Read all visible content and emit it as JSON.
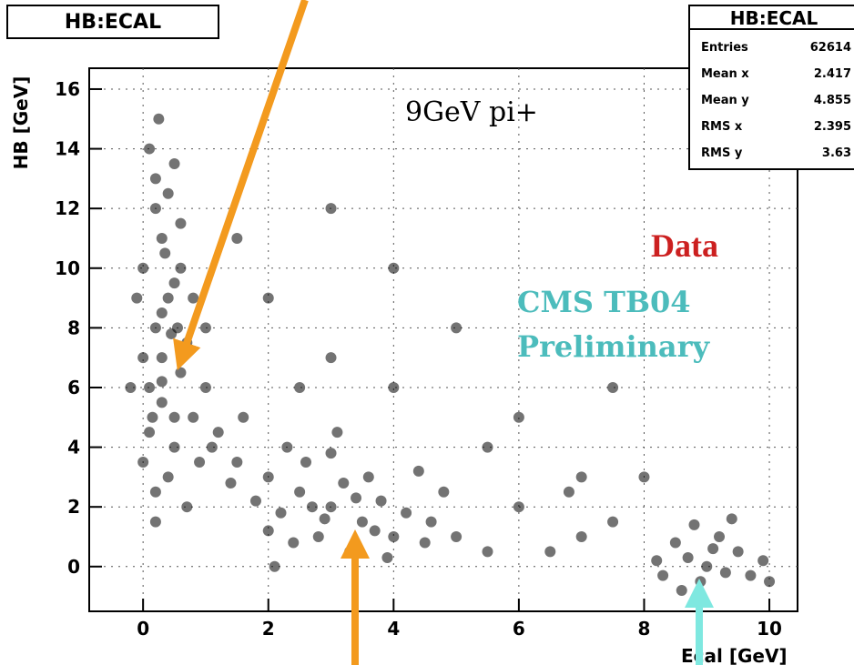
{
  "chart_data": {
    "type": "scatter",
    "title": "HB:ECAL",
    "xlabel": "Ecal [GeV]",
    "ylabel": "HB [GeV]",
    "xlim": [
      -0.86,
      10.45
    ],
    "ylim": [
      -1.5,
      16.7
    ],
    "xticks": [
      0,
      2,
      4,
      6,
      8,
      10
    ],
    "yticks": [
      0,
      2,
      4,
      6,
      8,
      10,
      12,
      14,
      16
    ],
    "grid": true,
    "color": "#000000",
    "x": [
      0.1,
      0.3,
      0.5,
      0.2,
      0.4,
      0.6,
      0.0,
      0.3,
      0.2,
      0.5,
      0.1,
      0.7,
      0.3,
      0.4,
      0.2,
      0.1,
      0.6,
      0.8,
      0.0,
      0.3,
      0.5,
      0.2,
      0.9,
      0.4,
      -0.1,
      0.6,
      0.3,
      0.15,
      0.45,
      1.0,
      0.25,
      0.7,
      0.0,
      0.35,
      0.55,
      0.8,
      1.1,
      -0.2,
      0.2,
      0.5,
      3,
      2.5,
      3.5,
      2,
      4,
      3.2,
      2.8,
      1.5,
      4.5,
      3.8,
      2.2,
      3.3,
      2.6,
      1.8,
      4.2,
      3,
      2.4,
      5,
      3.6,
      1.2,
      2.9,
      4.8,
      3.4,
      2,
      1.6,
      3.1,
      5.5,
      2.7,
      4.4,
      3.9,
      1.4,
      2.3,
      3.7,
      4.6,
      2.1,
      9,
      8.7,
      9.3,
      8.5,
      9.5,
      8.9,
      9.2,
      8.2,
      9.7,
      8.6,
      9.1,
      8.8,
      9.9,
      8.3,
      9.4,
      6,
      7,
      5.5,
      6.5,
      7.5,
      3,
      2,
      4,
      5,
      1.5,
      6,
      7,
      2.5,
      1,
      8,
      4,
      3,
      7.5,
      10,
      6.8
    ],
    "y": [
      6,
      7,
      5,
      8,
      9,
      6.5,
      10,
      11,
      12,
      4,
      4.5,
      7.5,
      5.5,
      3,
      13,
      14,
      10,
      5,
      7,
      8.5,
      9.5,
      2.5,
      3.5,
      12.5,
      9,
      11.5,
      6.2,
      5,
      7.8,
      6,
      15,
      2,
      3.5,
      10.5,
      8,
      9,
      4,
      6,
      1.5,
      13.5,
      2,
      2.5,
      1.5,
      3,
      1,
      2.8,
      1,
      3.5,
      0.8,
      2.2,
      1.8,
      0.5,
      3.5,
      2.2,
      1.8,
      3.8,
      0.8,
      1,
      3,
      4.5,
      1.6,
      2.5,
      2.3,
      1.2,
      5,
      4.5,
      0.5,
      2,
      3.2,
      0.3,
      2.8,
      4,
      1.2,
      1.5,
      0,
      0,
      0.3,
      -0.2,
      0.8,
      0.5,
      -0.5,
      1,
      0.2,
      -0.3,
      -0.8,
      0.6,
      1.4,
      0.2,
      -0.3,
      1.6,
      2,
      1,
      4,
      0.5,
      1.5,
      7,
      9,
      6,
      8,
      11,
      5,
      3,
      6,
      8,
      3,
      10,
      12,
      6,
      -0.5,
      2.5
    ],
    "stats": {
      "title": "HB:ECAL",
      "rows": [
        [
          "Entries",
          "62614"
        ],
        [
          "Mean x",
          "2.417"
        ],
        [
          "Mean y",
          "4.855"
        ],
        [
          "RMS x",
          "2.395"
        ],
        [
          "RMS y",
          "3.63"
        ]
      ]
    },
    "annotations": [
      {
        "text": "9GeV pi+",
        "color": "#000000"
      },
      {
        "text": "Data",
        "color": "#cc2020"
      },
      {
        "text": "CMS TB04",
        "color": "#4cbcbc"
      },
      {
        "text": "Preliminary",
        "color": "#4cbcbc"
      }
    ]
  }
}
